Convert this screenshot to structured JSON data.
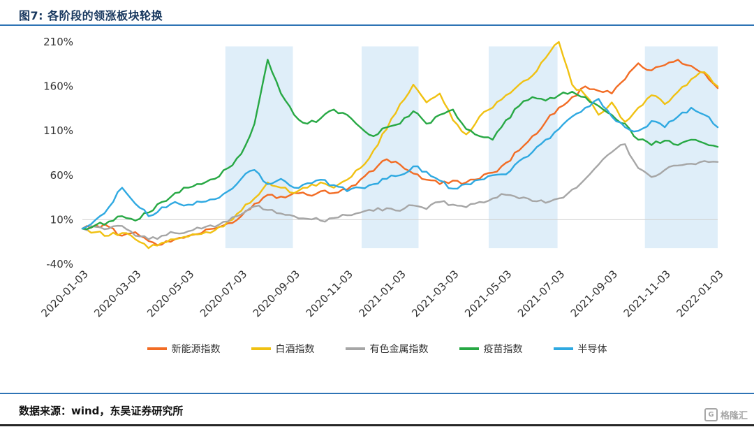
{
  "header": {
    "title": "图7:  各阶段的领涨板块轮换"
  },
  "footer": {
    "source": "数据来源：wind，东吴证券研究所",
    "logo": "格隆汇"
  },
  "theme": {
    "rule_blue": "#2e74b5",
    "title_navy": "#17375e",
    "axis_text": "#333333",
    "grid_line": "#cfcfcf"
  },
  "chart_data": {
    "type": "line",
    "title": "各阶段的领涨板块轮换",
    "xlabel": "",
    "ylabel": "",
    "x_unit": "months since 2020-01-03",
    "xlim": [
      0,
      24
    ],
    "ylim": [
      -40,
      210
    ],
    "grid_value": 10,
    "legend_position": "bottom",
    "band_color": "#dfeef9",
    "highlight_bands": [
      [
        5.4,
        7.95
      ],
      [
        10.55,
        12.7
      ],
      [
        15.35,
        17.95
      ],
      [
        21.25,
        24.0
      ]
    ],
    "y_ticks": [
      -40,
      10,
      60,
      110,
      160,
      210
    ],
    "y_tick_labels": [
      "-40%",
      "10%",
      "60%",
      "110%",
      "160%",
      "210%"
    ],
    "x_tick_positions": [
      0,
      2,
      4,
      6,
      8,
      10,
      12,
      14,
      16,
      18,
      20,
      22,
      24
    ],
    "x_tick_labels": [
      "2020-01-03",
      "2020-03-03",
      "2020-05-03",
      "2020-07-03",
      "2020-09-03",
      "2020-11-03",
      "2021-01-03",
      "2021-03-03",
      "2021-05-03",
      "2021-07-03",
      "2021-09-03",
      "2021-11-03",
      "2022-01-03"
    ],
    "x": [
      0,
      0.5,
      1,
      1.5,
      2,
      2.5,
      3,
      3.5,
      4,
      4.5,
      5,
      5.5,
      6,
      6.5,
      7,
      7.5,
      8,
      8.5,
      9,
      9.5,
      10,
      10.5,
      11,
      11.5,
      12,
      12.5,
      13,
      13.5,
      14,
      14.5,
      15,
      15.5,
      16,
      16.5,
      17,
      17.5,
      18,
      18.5,
      19,
      19.5,
      20,
      20.5,
      21,
      21.5,
      22,
      22.5,
      23,
      23.5,
      24
    ],
    "series": [
      {
        "name": "新能源指数",
        "color": "#f26c24",
        "values": [
          0,
          4,
          2,
          -8,
          -4,
          -14,
          -18,
          -12,
          -8,
          -5,
          0,
          6,
          14,
          28,
          38,
          36,
          40,
          38,
          42,
          40,
          44,
          55,
          65,
          78,
          72,
          62,
          55,
          50,
          54,
          52,
          56,
          63,
          74,
          88,
          104,
          120,
          136,
          148,
          160,
          155,
          152,
          168,
          186,
          178,
          184,
          190,
          183,
          175,
          158
        ]
      },
      {
        "name": "白酒指数",
        "color": "#f0c112",
        "values": [
          0,
          -4,
          -8,
          -5,
          -12,
          -22,
          -16,
          -12,
          -9,
          -6,
          -2,
          8,
          20,
          34,
          52,
          46,
          40,
          46,
          52,
          46,
          55,
          68,
          88,
          112,
          140,
          162,
          142,
          152,
          122,
          106,
          126,
          136,
          150,
          162,
          172,
          192,
          210,
          162,
          150,
          128,
          142,
          120,
          136,
          150,
          140,
          154,
          168,
          176,
          160
        ]
      },
      {
        "name": "有色金属指数",
        "color": "#a6a6a6",
        "values": [
          0,
          2,
          0,
          3,
          -8,
          -12,
          -8,
          -5,
          -3,
          0,
          2,
          8,
          16,
          25,
          21,
          17,
          14,
          11,
          9,
          12,
          15,
          18,
          20,
          23,
          20,
          26,
          22,
          30,
          27,
          24,
          30,
          34,
          38,
          34,
          31,
          29,
          34,
          44,
          56,
          72,
          86,
          95,
          68,
          58,
          66,
          71,
          73,
          76,
          75
        ]
      },
      {
        "name": "疫苗指数",
        "color": "#27a844",
        "values": [
          0,
          4,
          8,
          14,
          9,
          18,
          30,
          40,
          46,
          50,
          56,
          68,
          84,
          118,
          190,
          152,
          128,
          118,
          124,
          134,
          128,
          114,
          104,
          114,
          118,
          132,
          118,
          128,
          134,
          112,
          104,
          100,
          122,
          138,
          148,
          144,
          150,
          154,
          148,
          138,
          128,
          118,
          100,
          94,
          99,
          94,
          100,
          96,
          92
        ]
      },
      {
        "name": "半导体",
        "color": "#2fa9e1",
        "values": [
          0,
          10,
          24,
          46,
          28,
          14,
          24,
          30,
          27,
          30,
          33,
          42,
          56,
          66,
          50,
          56,
          46,
          51,
          55,
          49,
          42,
          46,
          50,
          56,
          60,
          70,
          64,
          54,
          45,
          50,
          55,
          60,
          61,
          76,
          86,
          100,
          112,
          126,
          136,
          146,
          126,
          114,
          110,
          121,
          114,
          126,
          136,
          128,
          114
        ]
      }
    ]
  }
}
